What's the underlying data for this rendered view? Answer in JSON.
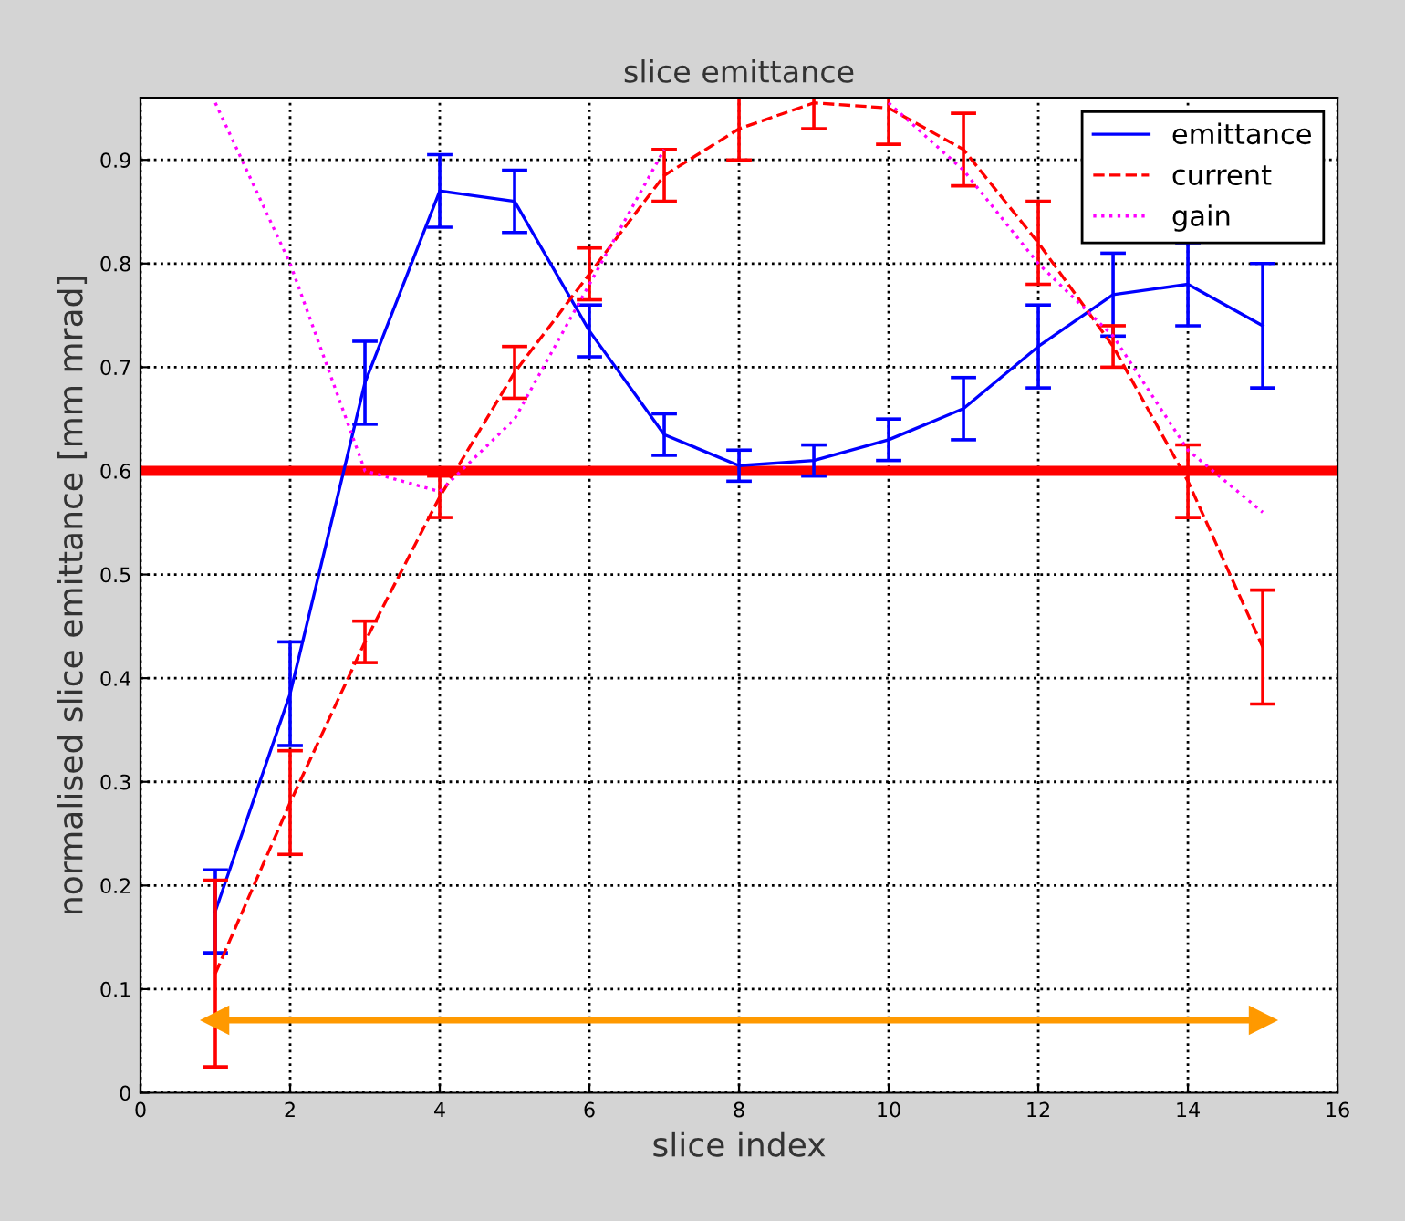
{
  "chart_data": {
    "type": "line",
    "title": "slice emittance",
    "xlabel": "slice index",
    "ylabel": "normalised slice emittance [mm mrad]",
    "x": [
      1,
      2,
      3,
      4,
      5,
      6,
      7,
      8,
      9,
      10,
      11,
      12,
      13,
      14,
      15
    ],
    "series": [
      {
        "name": "emittance",
        "color": "#0000ff",
        "line_style": "solid",
        "values": [
          0.175,
          0.385,
          0.685,
          0.87,
          0.86,
          0.735,
          0.635,
          0.605,
          0.61,
          0.63,
          0.66,
          0.72,
          0.77,
          0.78,
          0.74
        ],
        "errors": [
          0.04,
          0.05,
          0.04,
          0.035,
          0.03,
          0.025,
          0.02,
          0.015,
          0.015,
          0.02,
          0.03,
          0.04,
          0.04,
          0.04,
          0.06
        ]
      },
      {
        "name": "current",
        "color": "#ff0000",
        "line_style": "dashed",
        "values": [
          0.115,
          0.28,
          0.435,
          0.575,
          0.695,
          0.79,
          0.885,
          0.93,
          0.955,
          0.95,
          0.91,
          0.82,
          0.72,
          0.59,
          0.43
        ],
        "errors": [
          0.09,
          0.05,
          0.02,
          0.02,
          0.025,
          0.025,
          0.025,
          0.03,
          0.025,
          0.035,
          0.035,
          0.04,
          0.02,
          0.035,
          0.055
        ]
      },
      {
        "name": "gain",
        "color": "#ff00ff",
        "line_style": "dotted",
        "values": [
          0.955,
          0.8,
          0.6,
          0.58,
          0.65,
          0.78,
          0.91,
          null,
          null,
          0.955,
          0.89,
          0.8,
          0.73,
          0.62,
          0.56
        ]
      },
      {
        "type": "line",
        "marker": "triangle",
        "color": "#ff9900",
        "x": [
          1,
          15
        ],
        "values": [
          0.07,
          0.07
        ]
      }
    ],
    "xlim": [
      0,
      16
    ],
    "ylim": [
      0,
      0.96
    ],
    "xticks": [
      0,
      2,
      4,
      6,
      8,
      10,
      12,
      14,
      16
    ],
    "yticks": [
      0,
      0.1,
      0.2,
      0.3,
      0.4,
      0.5,
      0.6,
      0.7,
      0.8,
      0.9
    ],
    "ref_lines": [
      {
        "axis": "y",
        "value": 0.6,
        "color": "#ff0000",
        "line_style": "solid"
      }
    ],
    "grid": true,
    "legend": "top right",
    "marker": "none"
  }
}
